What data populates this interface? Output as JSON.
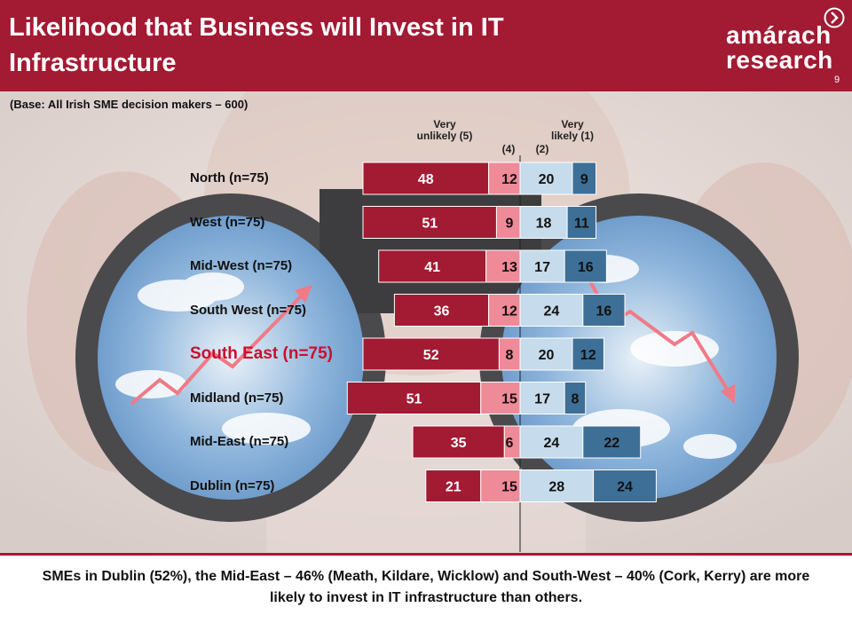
{
  "slide": {
    "title": "Likelihood that Business will Invest in IT Infrastructure",
    "logo": "amárach research",
    "page_number": "9",
    "base_note": "(Base: All Irish SME decision makers – 600)",
    "footnote": "SMEs in Dublin (52%), the Mid-East – 46% (Meath, Kildare, Wicklow) and South-West – 40% (Cork, Kerry) are more likely to invest in IT infrastructure than others.",
    "highlighted_row": "South East (n=75)"
  },
  "scale_headers": [
    "Very unlikely (5)",
    "(4)",
    "(2)",
    "Very likely (1)"
  ],
  "colors": {
    "header": "#a31a33",
    "very_unlikely": "#a31a33",
    "unlikely": "#ef8a99",
    "likely": "#c6dbeb",
    "very_likely": "#3e6f96",
    "highlight_text": "#c8102e"
  },
  "chart_data": {
    "type": "bar",
    "subtype": "diverging-stacked",
    "categories": [
      "North (n=75)",
      "West (n=75)",
      "Mid-West (n=75)",
      "South West (n=75)",
      "South East (n=75)",
      "Midland (n=75)",
      "Mid-East (n=75)",
      "Dublin (n=75)"
    ],
    "series": [
      {
        "name": "Very unlikely (5)",
        "values": [
          48,
          51,
          41,
          36,
          52,
          51,
          35,
          21
        ]
      },
      {
        "name": "(4)",
        "values": [
          12,
          9,
          13,
          12,
          8,
          15,
          6,
          15
        ]
      },
      {
        "name": "(2)",
        "values": [
          20,
          18,
          17,
          24,
          20,
          17,
          24,
          28
        ]
      },
      {
        "name": "Very likely (1)",
        "values": [
          9,
          11,
          16,
          16,
          12,
          8,
          22,
          24
        ]
      }
    ],
    "grid": false
  }
}
